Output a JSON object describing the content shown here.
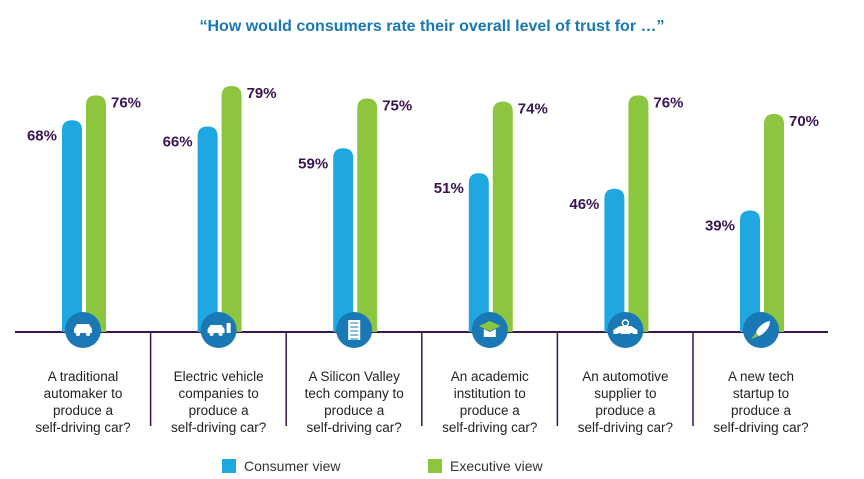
{
  "chart_data": {
    "type": "bar",
    "title": "“How would consumers rate their overall level of trust for …”",
    "categories": [
      "A traditional automaker to produce a self-driving car?",
      "Electric vehicle companies to produce a self-driving car?",
      "A Silicon Valley tech company to produce a self-driving car?",
      "An academic institution to produce a self-driving car?",
      "An automotive supplier to produce a self-driving car?",
      "A new tech startup to produce a self-driving car?"
    ],
    "category_lines": [
      [
        "A traditional",
        "automaker to",
        "produce a",
        "self-driving car?"
      ],
      [
        "Electric vehicle",
        "companies to",
        "produce a",
        "self-driving car?"
      ],
      [
        "A Silicon Valley",
        "tech company to",
        "produce a",
        "self-driving car?"
      ],
      [
        "An academic",
        "institution to",
        "produce a",
        "self-driving car?"
      ],
      [
        "An automotive",
        "supplier to",
        "produce a",
        "self-driving car?"
      ],
      [
        "A new tech",
        "startup to",
        "produce a",
        "self-driving car?"
      ]
    ],
    "icons": [
      "car-icon",
      "electric-car-icon",
      "building-icon",
      "graduation-cap-icon",
      "car-parts-icon",
      "rocket-icon"
    ],
    "series": [
      {
        "name": "Consumer view",
        "color": "#1ea7e1",
        "values": [
          68,
          66,
          59,
          51,
          46,
          39
        ]
      },
      {
        "name": "Executive view",
        "color": "#8cc63f",
        "values": [
          76,
          79,
          75,
          74,
          76,
          70
        ]
      }
    ],
    "value_suffix": "%",
    "ylim": [
      0,
      79
    ],
    "axis_color": "#3b1454",
    "icon_circle_color": "#1a78b4"
  }
}
